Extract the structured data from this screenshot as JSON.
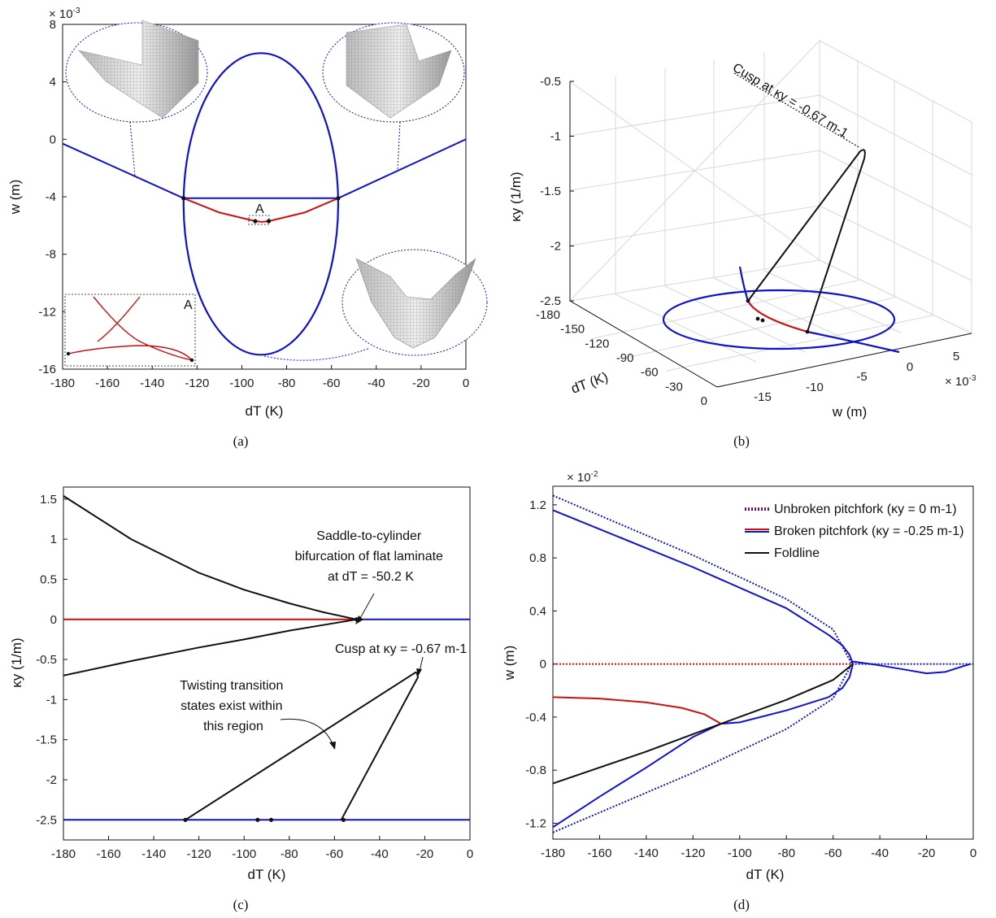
{
  "colors": {
    "blue": "#1010d0",
    "red": "#cc1010",
    "black": "#111111",
    "grid": "#d8d8d8"
  },
  "chart_data": [
    {
      "panel": "a",
      "type": "line",
      "caption": "(a)",
      "xlabel": "dT (K)",
      "ylabel": "w (m)",
      "y_multiplier": "× 10",
      "y_multiplier_exp": "-3",
      "xlim": [
        -180,
        0
      ],
      "ylim": [
        -16,
        8
      ],
      "xticks": [
        -180,
        -160,
        -140,
        -120,
        -100,
        -80,
        -60,
        -40,
        -20,
        0
      ],
      "yticks": [
        -16,
        -12,
        -8,
        -4,
        0,
        4,
        8
      ],
      "series": [
        {
          "color": "blue",
          "x": [
            -180,
            -126,
            -57,
            0
          ],
          "y": [
            -0.3,
            -4.1,
            -4.1,
            0
          ]
        },
        {
          "color": "red",
          "x": [
            -126,
            -110,
            -94,
            -91,
            -88,
            -72,
            -57
          ],
          "y": [
            -4.1,
            -5.1,
            -5.7,
            -5.75,
            -5.7,
            -5.1,
            -4.1
          ]
        },
        {
          "color": "blue",
          "shape": "ellipse",
          "center": [
            -91.5,
            -4.5
          ],
          "x_half_width": 34.5,
          "y_half_height": 10.5
        }
      ],
      "points": [
        {
          "x": -126,
          "y": -4.1
        },
        {
          "x": -57,
          "y": -4.1
        },
        {
          "x": -94,
          "y": -5.7
        },
        {
          "x": -88,
          "y": -5.7
        }
      ],
      "annotations": {
        "region_label": "A",
        "inset_label": "A"
      }
    },
    {
      "panel": "b",
      "type": "line",
      "caption": "(b)",
      "xlabel": "w (m)",
      "ylabel": "κy (1/m)",
      "zlabel": "dT (K)",
      "x_multiplier": "× 10",
      "x_multiplier_exp": "-3",
      "xticks": [
        -15,
        -10,
        -5,
        0,
        5
      ],
      "yticks": [
        -2.5,
        -2,
        -1.5,
        -1,
        -0.5
      ],
      "zticks": [
        -180,
        -150,
        -120,
        -90,
        -60,
        -30,
        0
      ],
      "annotation": "Cusp at κy = -0.67 m-1"
    },
    {
      "panel": "c",
      "type": "line",
      "caption": "(c)",
      "xlabel": "dT (K)",
      "ylabel": "κy (1/m)",
      "xlim": [
        -180,
        0
      ],
      "ylim": [
        -2.75,
        1.65
      ],
      "xticks": [
        -180,
        -160,
        -140,
        -120,
        -100,
        -80,
        -60,
        -40,
        -20,
        0
      ],
      "yticks": [
        -2.5,
        -2,
        -1.5,
        -1,
        -0.5,
        0,
        0.5,
        1,
        1.5
      ],
      "series": [
        {
          "color": "red",
          "x": [
            -180,
            -50.2
          ],
          "y": [
            0,
            0
          ]
        },
        {
          "color": "blue",
          "x": [
            -50.2,
            0
          ],
          "y": [
            0,
            0
          ]
        },
        {
          "color": "black",
          "x": [
            -180,
            -150,
            -120,
            -100,
            -80,
            -65,
            -50.2
          ],
          "y": [
            1.54,
            1.0,
            0.58,
            0.37,
            0.2,
            0.09,
            0
          ]
        },
        {
          "color": "black",
          "x": [
            -180,
            -150,
            -120,
            -100,
            -80,
            -65,
            -50.2
          ],
          "y": [
            -0.7,
            -0.52,
            -0.35,
            -0.25,
            -0.14,
            -0.07,
            0
          ]
        },
        {
          "color": "blue",
          "x": [
            -180,
            0
          ],
          "y": [
            -2.5,
            -2.5
          ]
        },
        {
          "color": "black",
          "x": [
            -126,
            -24,
            -23.5,
            -23,
            -57
          ],
          "y": [
            -2.5,
            -0.66,
            -0.67,
            -0.72,
            -2.5
          ]
        }
      ],
      "points": [
        {
          "x": -50.2,
          "y": 0
        },
        {
          "x": -126,
          "y": -2.5
        },
        {
          "x": -94,
          "y": -2.5
        },
        {
          "x": -88,
          "y": -2.5
        },
        {
          "x": -56,
          "y": -2.5
        }
      ],
      "annotations": {
        "saddle": [
          "Saddle-to-cylinder",
          "bifurcation of flat laminate",
          "at dT = -50.2 K"
        ],
        "cusp": "Cusp at κy = -0.67 m-1",
        "twist": [
          "Twisting transition",
          "states exist within",
          "this region"
        ]
      }
    },
    {
      "panel": "d",
      "type": "line",
      "caption": "(d)",
      "xlabel": "dT (K)",
      "ylabel": "w (m)",
      "y_multiplier": "× 10",
      "y_multiplier_exp": "-2",
      "xlim": [
        -180,
        0
      ],
      "ylim": [
        -1.32,
        1.34
      ],
      "xticks": [
        -180,
        -160,
        -140,
        -120,
        -100,
        -80,
        -60,
        -40,
        -20,
        0
      ],
      "yticks": [
        -1.2,
        -0.8,
        -0.4,
        0,
        0.4,
        0.8,
        1.2
      ],
      "legend": [
        {
          "label": "Unbroken pitchfork (κy = 0 m-1)",
          "style": "dotted"
        },
        {
          "label": "Broken pitchfork (κy = -0.25 m-1)",
          "style": "solid"
        },
        {
          "label": "Foldline",
          "style": "solid-black"
        }
      ],
      "series": [
        {
          "color": "blue",
          "dash": true,
          "x": [
            -180,
            -120,
            -80,
            -60,
            -52
          ],
          "y": [
            1.27,
            0.82,
            0.49,
            0.26,
            0
          ]
        },
        {
          "color": "blue",
          "dash": true,
          "x": [
            -180,
            -120,
            -80,
            -60,
            -52
          ],
          "y": [
            -1.27,
            -0.82,
            -0.49,
            -0.26,
            0
          ]
        },
        {
          "color": "blue",
          "dash": true,
          "x": [
            -52,
            0
          ],
          "y": [
            0,
            0
          ]
        },
        {
          "color": "red",
          "dash": true,
          "x": [
            -180,
            -52
          ],
          "y": [
            0,
            0
          ]
        },
        {
          "color": "blue",
          "x": [
            -180,
            -120,
            -80,
            -62,
            -56,
            -53,
            -51.5,
            -53,
            -56,
            -62
          ],
          "y": [
            1.16,
            0.73,
            0.42,
            0.22,
            0.14,
            0.07,
            0,
            -0.1,
            -0.18,
            -0.25
          ]
        },
        {
          "color": "blue",
          "x": [
            -62,
            -80,
            -100,
            -108,
            -120,
            -140,
            -160,
            -180
          ],
          "y": [
            -0.25,
            -0.35,
            -0.44,
            -0.45,
            -0.55,
            -0.78,
            -1.0,
            -1.23
          ]
        },
        {
          "color": "blue",
          "x": [
            -52,
            -40,
            -30,
            -20,
            -12,
            -5,
            -1
          ],
          "y": [
            0.02,
            -0.01,
            -0.04,
            -0.07,
            -0.06,
            -0.02,
            0
          ]
        },
        {
          "color": "red",
          "x": [
            -180,
            -160,
            -140,
            -125,
            -115,
            -108
          ],
          "y": [
            -0.25,
            -0.26,
            -0.29,
            -0.33,
            -0.38,
            -0.45
          ]
        },
        {
          "color": "black",
          "x": [
            -180,
            -140,
            -108,
            -80,
            -60,
            -51.5
          ],
          "y": [
            -0.9,
            -0.66,
            -0.45,
            -0.27,
            -0.12,
            0
          ]
        }
      ],
      "points": []
    }
  ]
}
